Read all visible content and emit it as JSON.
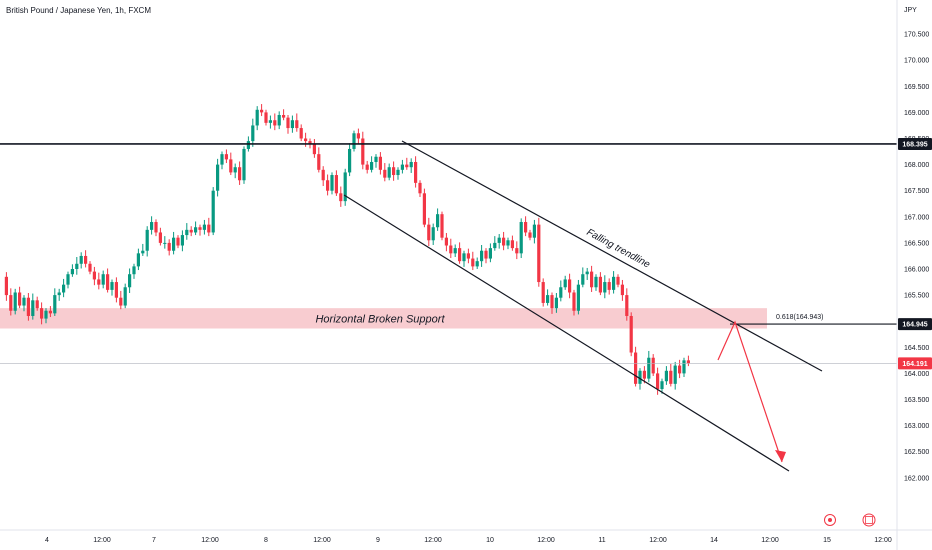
{
  "title": "British Pound / Japanese Yen, 1h, FXCM",
  "currency": "JPY",
  "chart_data": {
    "type": "candlestick",
    "title": "British Pound / Japanese Yen, 1h, FXCM",
    "ylim": [
      161.0,
      171.0
    ],
    "y_ticks": [
      162.0,
      162.5,
      163.0,
      163.5,
      164.0,
      164.5,
      165.5,
      166.0,
      166.5,
      167.0,
      167.5,
      168.0,
      168.5,
      169.0,
      169.5,
      170.0,
      170.5
    ],
    "x_ticks": [
      "4",
      "12:00",
      "7",
      "12:00",
      "8",
      "12:00",
      "9",
      "12:00",
      "10",
      "12:00",
      "11",
      "12:00",
      "14",
      "12:00",
      "15",
      "12:00"
    ],
    "price_badges": [
      {
        "value": "168.395",
        "bg": "#131722",
        "fg": "#ffffff"
      },
      {
        "value": "164.945",
        "bg": "#131722",
        "fg": "#ffffff"
      },
      {
        "value": "164.191",
        "bg": "#f23645",
        "fg": "#ffffff"
      }
    ],
    "horizontal_lines": [
      168.395,
      164.945
    ],
    "current_price": 164.191,
    "support_zone": [
      164.86,
      165.25
    ],
    "support_label": "Horizontal Broken Support",
    "fib_label": "0.618(164.943)",
    "trendline_label": "Falling trendline",
    "colors": {
      "up": "#089981",
      "down": "#f23645",
      "zone": "#f7c3c8",
      "arrow": "#f23645",
      "line": "#131722"
    },
    "closes": [
      165.85,
      165.5,
      165.2,
      165.55,
      165.3,
      165.45,
      165.1,
      165.4,
      165.25,
      165.05,
      165.2,
      165.15,
      165.5,
      165.55,
      165.7,
      165.9,
      166.0,
      166.1,
      166.25,
      166.1,
      165.95,
      165.8,
      165.7,
      165.9,
      165.6,
      165.75,
      165.45,
      165.3,
      165.65,
      165.9,
      166.05,
      166.3,
      166.35,
      166.75,
      166.9,
      166.7,
      166.5,
      166.5,
      166.35,
      166.6,
      166.45,
      166.65,
      166.75,
      166.7,
      166.8,
      166.75,
      166.85,
      166.7,
      167.5,
      168.0,
      168.2,
      168.1,
      167.85,
      167.95,
      167.7,
      168.3,
      168.45,
      168.75,
      169.05,
      169.0,
      168.8,
      168.85,
      168.75,
      168.95,
      168.9,
      168.7,
      168.85,
      168.7,
      168.5,
      168.45,
      168.4,
      168.2,
      167.9,
      167.7,
      167.5,
      167.8,
      167.45,
      167.3,
      167.85,
      168.3,
      168.6,
      168.5,
      168.0,
      167.9,
      168.05,
      168.15,
      167.9,
      167.75,
      167.95,
      167.8,
      167.9,
      168.0,
      167.95,
      168.05,
      167.65,
      167.45,
      166.85,
      166.55,
      166.8,
      167.05,
      166.6,
      166.45,
      166.3,
      166.4,
      166.15,
      166.3,
      166.2,
      166.05,
      166.15,
      166.35,
      166.2,
      166.4,
      166.5,
      166.6,
      166.45,
      166.55,
      166.4,
      166.3,
      166.9,
      166.7,
      166.6,
      166.85,
      165.75,
      165.35,
      165.5,
      165.25,
      165.45,
      165.65,
      165.8,
      165.55,
      165.2,
      165.7,
      165.9,
      165.95,
      165.65,
      165.85,
      165.55,
      165.75,
      165.6,
      165.85,
      165.7,
      165.5,
      165.1,
      164.4,
      163.8,
      164.05,
      163.9,
      164.3,
      164.0,
      163.7,
      163.85,
      164.05,
      163.8,
      164.15,
      164.0,
      164.25,
      164.19
    ]
  },
  "footer_icons": [
    "record-icon",
    "calendar-icon"
  ]
}
